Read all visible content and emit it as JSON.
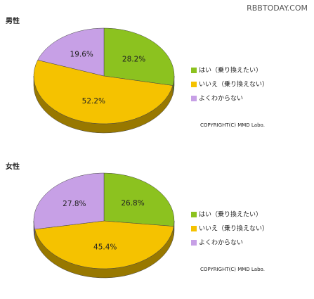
{
  "watermark": "RBBTODAY.COM",
  "chart_data": [
    {
      "type": "pie",
      "title": "男性",
      "copyright": "COPYRIGHT(C) MMD Labo.",
      "categories": [
        "はい（乗り換えたい）",
        "いいえ（乗り換えない）",
        "よくわからない"
      ],
      "values": [
        28.2,
        52.2,
        19.6
      ],
      "value_labels": [
        "28.2%",
        "52.2%",
        "19.6%"
      ],
      "colors": [
        "#8cc21f",
        "#f5c200",
        "#c7a0e6"
      ]
    },
    {
      "type": "pie",
      "title": "女性",
      "copyright": "COPYRIGHT(C) MMD Labo.",
      "categories": [
        "はい（乗り換えたい）",
        "いいえ（乗り換えない）",
        "よくわからない"
      ],
      "values": [
        26.8,
        45.4,
        27.8
      ],
      "value_labels": [
        "26.8%",
        "45.4%",
        "27.8%"
      ],
      "colors": [
        "#8cc21f",
        "#f5c200",
        "#c7a0e6"
      ]
    }
  ]
}
